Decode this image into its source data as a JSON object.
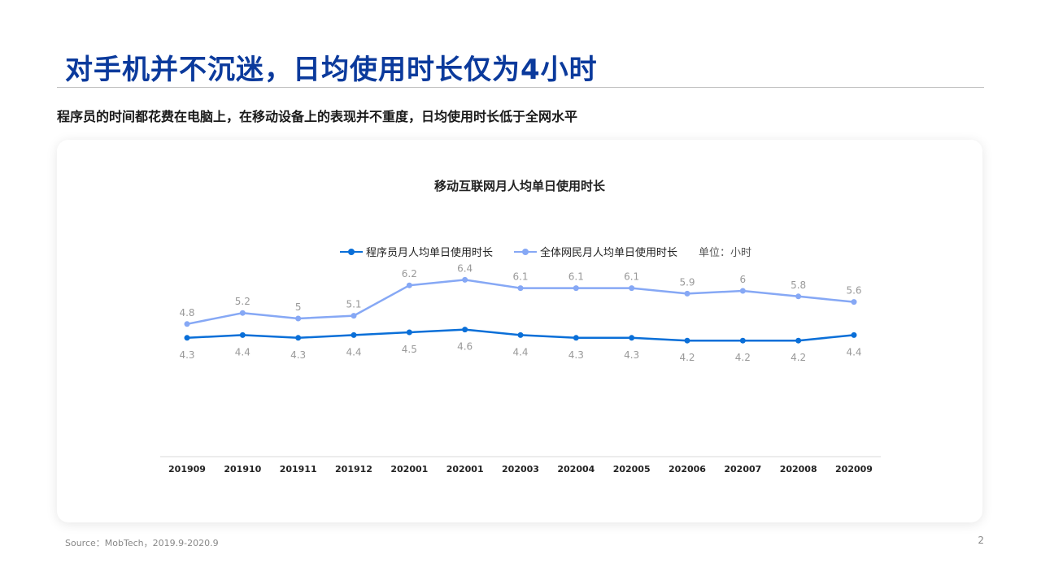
{
  "slide": {
    "title": "对手机并不沉迷，日均使用时长仅为4小时",
    "subtitle": "程序员的时间都花费在电脑上，在移动设备上的表现并不重度，日均使用时长低于全网水平",
    "source": "Source：MobTech，2019.9-2020.9",
    "page_number": "2"
  },
  "legend": {
    "unit_note": "单位：小时"
  },
  "chart_data": {
    "type": "line",
    "title": "移动互联网月人均单日使用时长",
    "categories": [
      "201909",
      "201910",
      "201911",
      "201912",
      "202001",
      "202001",
      "202003",
      "202004",
      "202005",
      "202006",
      "202007",
      "202008",
      "202009"
    ],
    "series": [
      {
        "name": "程序员月人均单日使用时长",
        "color": "#0a6fd8",
        "labels_position": "below",
        "values": [
          4.3,
          4.4,
          4.3,
          4.4,
          4.5,
          4.6,
          4.4,
          4.3,
          4.3,
          4.2,
          4.2,
          4.2,
          4.4
        ]
      },
      {
        "name": "全体网民月人均单日使用时长",
        "color": "#86a8f5",
        "labels_position": "above",
        "values": [
          4.8,
          5.2,
          5.0,
          5.1,
          6.2,
          6.4,
          6.1,
          6.1,
          6.1,
          5.9,
          6.0,
          5.8,
          5.6
        ]
      }
    ],
    "ylim": [
      0,
      8
    ],
    "grid": false,
    "legend_position": "top",
    "axis_color": "#d9d9d9",
    "label_color": "#999999"
  }
}
